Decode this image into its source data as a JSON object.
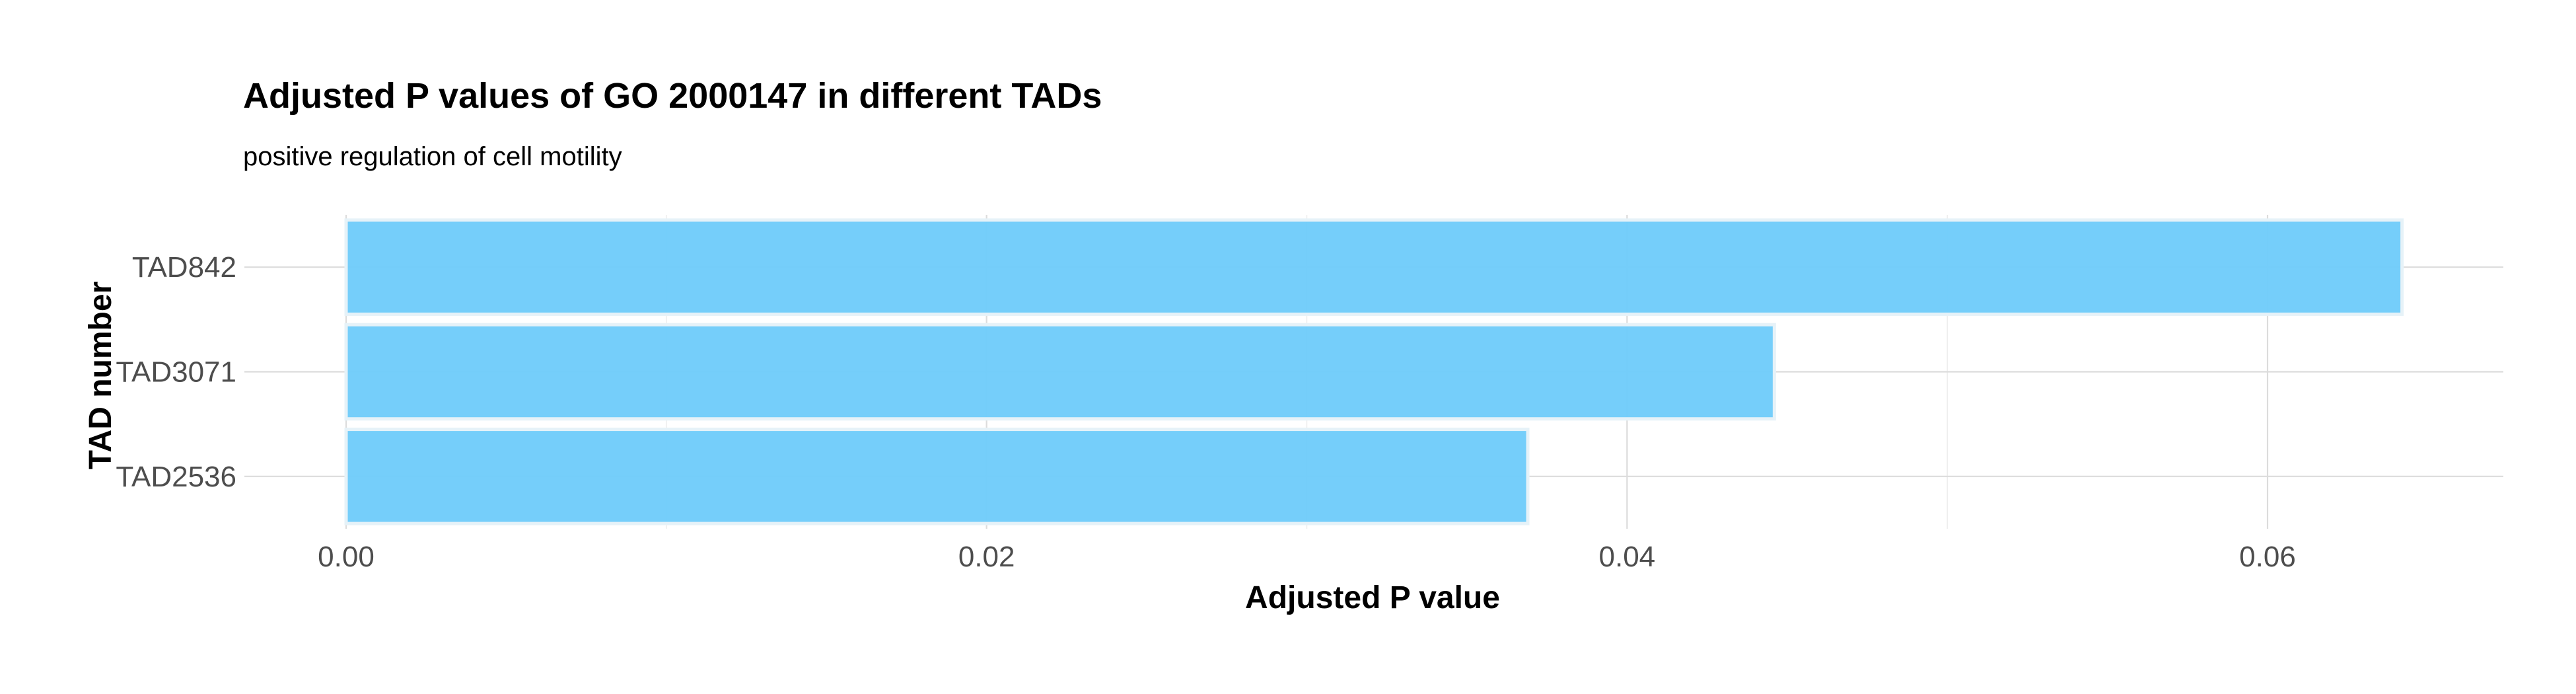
{
  "chart_data": {
    "type": "bar",
    "orientation": "horizontal",
    "title": "Adjusted P values of GO 2000147 in different TADs",
    "subtitle": "positive regulation of cell motility",
    "xlabel": "Adjusted P value",
    "ylabel": "TAD number",
    "categories": [
      "TAD842",
      "TAD3071",
      "TAD2536"
    ],
    "values": [
      0.0642,
      0.0446,
      0.0369
    ],
    "xlim": [
      0,
      0.0674
    ],
    "x_ticks": [
      0.0,
      0.02,
      0.04,
      0.06
    ],
    "x_tick_labels": [
      "0.00",
      "0.02",
      "0.04",
      "0.06"
    ],
    "x_minor_ticks": [
      0.01,
      0.03,
      0.05
    ],
    "grid": true,
    "legend": "none",
    "bar_color": "#6ecbfa",
    "bar_outline_color": "#e6f2f8"
  }
}
